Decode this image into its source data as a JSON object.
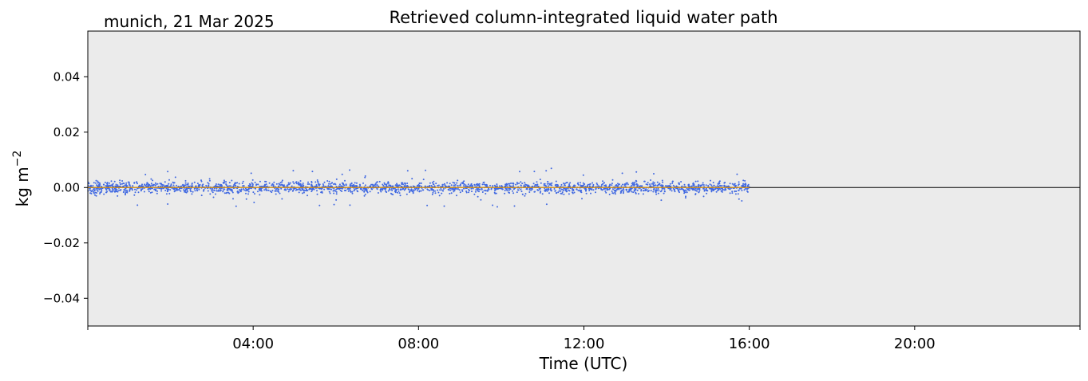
{
  "chart_data": {
    "type": "scatter",
    "title": "Retrieved column-integrated liquid water path",
    "location_label": "munich, 21 Mar 2025",
    "xlabel": "Time (UTC)",
    "ylabel": "kg m",
    "ylabel_exponent": "−2",
    "x_unit": "hours UTC",
    "xlim": [
      0,
      24
    ],
    "ylim": [
      -0.05,
      0.0565
    ],
    "x_ticks": [
      {
        "value": 0,
        "label": ""
      },
      {
        "value": 4,
        "label": "04:00"
      },
      {
        "value": 8,
        "label": "08:00"
      },
      {
        "value": 12,
        "label": "12:00"
      },
      {
        "value": 16,
        "label": "16:00"
      },
      {
        "value": 20,
        "label": "20:00"
      },
      {
        "value": 24,
        "label": ""
      }
    ],
    "y_ticks": [
      {
        "value": 0.04,
        "label": "0.04"
      },
      {
        "value": 0.02,
        "label": "0.02"
      },
      {
        "value": 0.0,
        "label": "0.00"
      },
      {
        "value": -0.02,
        "label": "−0.02"
      },
      {
        "value": -0.04,
        "label": "−0.04"
      }
    ],
    "reference_line": {
      "y": 0
    },
    "series": [
      {
        "kind": "scatter",
        "color": "#4169e1",
        "x_range": [
          0.0,
          16.0
        ],
        "y_center": 0.0,
        "y_typical_range": [
          -0.003,
          0.003
        ],
        "y_extreme_range": [
          -0.007,
          0.007
        ]
      },
      {
        "kind": "line",
        "color": "#ffa500",
        "x_range": [
          0.0,
          16.0
        ],
        "y": 0.0
      }
    ],
    "plot_background": "#ebebeb",
    "grid": false
  }
}
